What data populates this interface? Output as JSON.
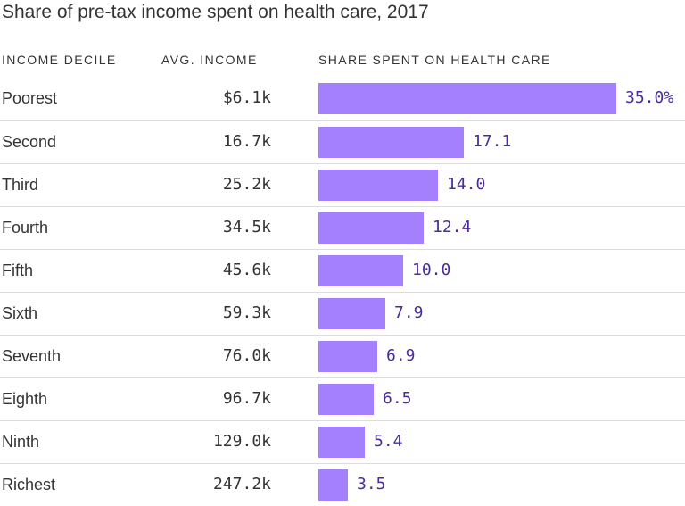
{
  "title": "Share of pre-tax income spent on health care, 2017",
  "columns": {
    "decile": "INCOME DECILE",
    "income": "AVG. INCOME",
    "share": "SHARE SPENT ON HEALTH CARE"
  },
  "colors": {
    "bar": "#a480ff",
    "value_text": "#4b2b9e",
    "text": "#333333",
    "rule": "#dcdcdc"
  },
  "chart_data": {
    "type": "bar",
    "orientation": "horizontal",
    "title": "Share of pre-tax income spent on health care, 2017",
    "categories": [
      "Poorest",
      "Second",
      "Third",
      "Fourth",
      "Fifth",
      "Sixth",
      "Seventh",
      "Eighth",
      "Ninth",
      "Richest"
    ],
    "avg_income_labels": [
      "$6.1k",
      "16.7k",
      "25.2k",
      "34.5k",
      "45.6k",
      "59.3k",
      "76.0k",
      "96.7k",
      "129.0k",
      "247.2k"
    ],
    "values": [
      35.0,
      17.1,
      14.0,
      12.4,
      10.0,
      7.9,
      6.9,
      6.5,
      5.4,
      3.5
    ],
    "value_labels": [
      "35.0%",
      "17.1",
      "14.0",
      "12.4",
      "10.0",
      "7.9",
      "6.9",
      "6.5",
      "5.4",
      "3.5"
    ],
    "xlim": [
      0,
      35.0
    ],
    "grid": false
  }
}
